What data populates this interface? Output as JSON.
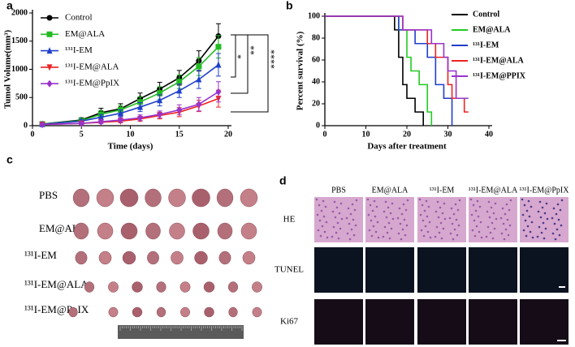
{
  "chart_data": [
    {
      "type": "line",
      "panel": "a",
      "xlabel": "Time (days)",
      "ylabel": "Tumol Volume(mm³)",
      "x": [
        1,
        5,
        7,
        9,
        11,
        13,
        15,
        17,
        19
      ],
      "xlim": [
        0,
        20
      ],
      "xticks": [
        0,
        5,
        10,
        15,
        20
      ],
      "ylim": [
        0,
        2000
      ],
      "yticks": [
        0,
        500,
        1000,
        1500,
        2000
      ],
      "series": [
        {
          "name": "Control",
          "color": "#000000",
          "marker": "circle",
          "values": [
            30,
            100,
            230,
            300,
            480,
            650,
            850,
            1150,
            1590
          ],
          "errors": [
            20,
            40,
            80,
            90,
            100,
            120,
            130,
            180,
            220
          ]
        },
        {
          "name": "EM@ALA",
          "color": "#22bb22",
          "marker": "square",
          "values": [
            30,
            90,
            200,
            280,
            420,
            580,
            780,
            1050,
            1400
          ],
          "errors": [
            20,
            40,
            70,
            80,
            90,
            110,
            120,
            160,
            200
          ]
        },
        {
          "name": "¹³¹I-EM",
          "color": "#1f3fcc",
          "marker": "triangle",
          "values": [
            25,
            80,
            150,
            220,
            330,
            450,
            620,
            820,
            1080
          ],
          "errors": [
            15,
            30,
            50,
            60,
            80,
            100,
            120,
            160,
            200
          ]
        },
        {
          "name": "¹³¹I-EM@ALA",
          "color": "#ee2222",
          "marker": "triangle-down",
          "values": [
            20,
            40,
            60,
            80,
            120,
            180,
            240,
            350,
            480
          ],
          "errors": [
            10,
            20,
            20,
            30,
            40,
            60,
            80,
            100,
            150
          ]
        },
        {
          "name": "¹³¹I-EM@PpIX",
          "color": "#9933cc",
          "marker": "diamond",
          "values": [
            20,
            40,
            70,
            100,
            140,
            200,
            280,
            380,
            600
          ],
          "errors": [
            10,
            20,
            30,
            40,
            50,
            60,
            90,
            120,
            180
          ]
        }
      ],
      "annotations": [
        "*",
        "**",
        "****"
      ]
    },
    {
      "type": "step",
      "panel": "b",
      "xlabel": "Days after treatment",
      "ylabel": "Percent survival (%)",
      "xlim": [
        0,
        40
      ],
      "xticks": [
        0,
        10,
        20,
        30,
        40
      ],
      "ylim": [
        0,
        100
      ],
      "yticks": [
        0,
        20,
        40,
        60,
        80,
        100
      ],
      "series": [
        {
          "name": "Control",
          "color": "#000000",
          "x": [
            0,
            17,
            18,
            19,
            20,
            22,
            24
          ],
          "values": [
            100,
            87.5,
            62.5,
            37.5,
            25,
            12.5,
            0
          ]
        },
        {
          "name": "EM@ALA",
          "color": "#22cc22",
          "x": [
            0,
            18,
            20,
            21,
            23,
            25,
            26
          ],
          "values": [
            100,
            87.5,
            62.5,
            50,
            37.5,
            12.5,
            0
          ]
        },
        {
          "name": "¹³¹I-EM",
          "color": "#1f3fcc",
          "x": [
            0,
            18,
            22,
            25,
            27,
            29,
            31
          ],
          "values": [
            100,
            87.5,
            75,
            62.5,
            37.5,
            25,
            0
          ]
        },
        {
          "name": "¹³¹I-EM@ALA",
          "color": "#ee2222",
          "x": [
            0,
            19,
            25,
            27,
            30,
            31,
            34,
            35
          ],
          "values": [
            100,
            87.5,
            75,
            62.5,
            37.5,
            25,
            12.5,
            12.5
          ]
        },
        {
          "name": "¹³¹I-EM@PPIX",
          "color": "#9933cc",
          "x": [
            0,
            19,
            26,
            29,
            30,
            32,
            35
          ],
          "values": [
            100,
            87.5,
            75,
            62.5,
            50,
            25,
            25
          ]
        }
      ]
    }
  ],
  "photo_panels": {
    "c": {
      "panel": "c",
      "rows": [
        "PBS",
        "EM@ALA",
        "¹³¹I-EM",
        "¹³¹I-EM@ALA",
        "¹³¹I-EM@PpIX"
      ]
    },
    "d": {
      "panel": "d",
      "columns": [
        "PBS",
        "EM@ALA",
        "¹³¹I-EM",
        "¹³¹I-EM@ALA",
        "¹³¹I-EM@PpIX"
      ],
      "rows": [
        "HE",
        "TUNEL",
        "Ki67"
      ]
    }
  }
}
